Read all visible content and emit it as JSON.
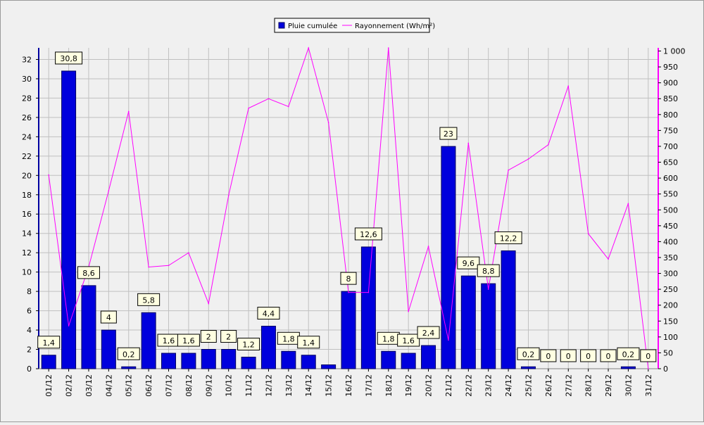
{
  "chart_data": {
    "type": "bar",
    "categories": [
      "01/12",
      "02/12",
      "03/12",
      "04/12",
      "05/12",
      "06/12",
      "07/12",
      "08/12",
      "09/12",
      "10/12",
      "11/12",
      "12/12",
      "13/12",
      "14/12",
      "15/12",
      "16/12",
      "17/12",
      "18/12",
      "19/12",
      "20/12",
      "21/12",
      "22/12",
      "23/12",
      "24/12",
      "25/12",
      "26/12",
      "27/12",
      "28/12",
      "29/12",
      "30/12",
      "31/12"
    ],
    "series": [
      {
        "name": "Pluie cumulée",
        "type": "bar",
        "axis": "left",
        "color": "#0000dd",
        "values": [
          1.4,
          30.8,
          8.6,
          4,
          0.2,
          5.8,
          1.6,
          1.6,
          2,
          2,
          1.2,
          4.4,
          1.8,
          1.4,
          0.4,
          8,
          12.6,
          1.8,
          1.6,
          2.4,
          23,
          9.6,
          8.8,
          12.2,
          0.2,
          0,
          0,
          0,
          0,
          0.2,
          0
        ],
        "labels": [
          "1,4",
          "30,8",
          "8,6",
          "4",
          "0,2",
          "5,8",
          "1,6",
          "1,6",
          "2",
          "2",
          "1,2",
          "4,4",
          "1,8",
          "1,4",
          "",
          "8",
          "12,6",
          "1,8",
          "1,6",
          "2,4",
          "23",
          "9,6",
          "8,8",
          "12,2",
          "0,2",
          "0",
          "0",
          "0",
          "0",
          "0,2",
          "0"
        ]
      },
      {
        "name": "Rayonnement (Wh/m²)",
        "type": "line",
        "axis": "right",
        "color": "#ff00ff",
        "values": [
          610,
          135,
          320,
          560,
          810,
          320,
          325,
          365,
          205,
          545,
          820,
          850,
          825,
          1010,
          775,
          240,
          240,
          1010,
          180,
          385,
          90,
          710,
          250,
          625,
          660,
          705,
          890,
          425,
          345,
          520,
          0
        ]
      }
    ],
    "y_left": {
      "min": 0,
      "max": 33.2,
      "ticks": [
        0,
        2,
        4,
        6,
        8,
        10,
        12,
        14,
        16,
        18,
        20,
        22,
        24,
        26,
        28,
        30,
        32
      ]
    },
    "y_right": {
      "min": 0,
      "max": 1010,
      "ticks": [
        0,
        50,
        100,
        150,
        200,
        250,
        300,
        350,
        400,
        450,
        500,
        550,
        600,
        650,
        700,
        750,
        800,
        850,
        900,
        950,
        1000
      ],
      "tick_labels": [
        "0",
        "50",
        "100",
        "150",
        "200",
        "250",
        "300",
        "350",
        "400",
        "450",
        "500",
        "550",
        "600",
        "650",
        "700",
        "750",
        "800",
        "850",
        "900",
        "950",
        "1 000"
      ]
    },
    "grid": true,
    "legend_position": "top-center",
    "title": "",
    "xlabel": "",
    "ylabel": ""
  }
}
